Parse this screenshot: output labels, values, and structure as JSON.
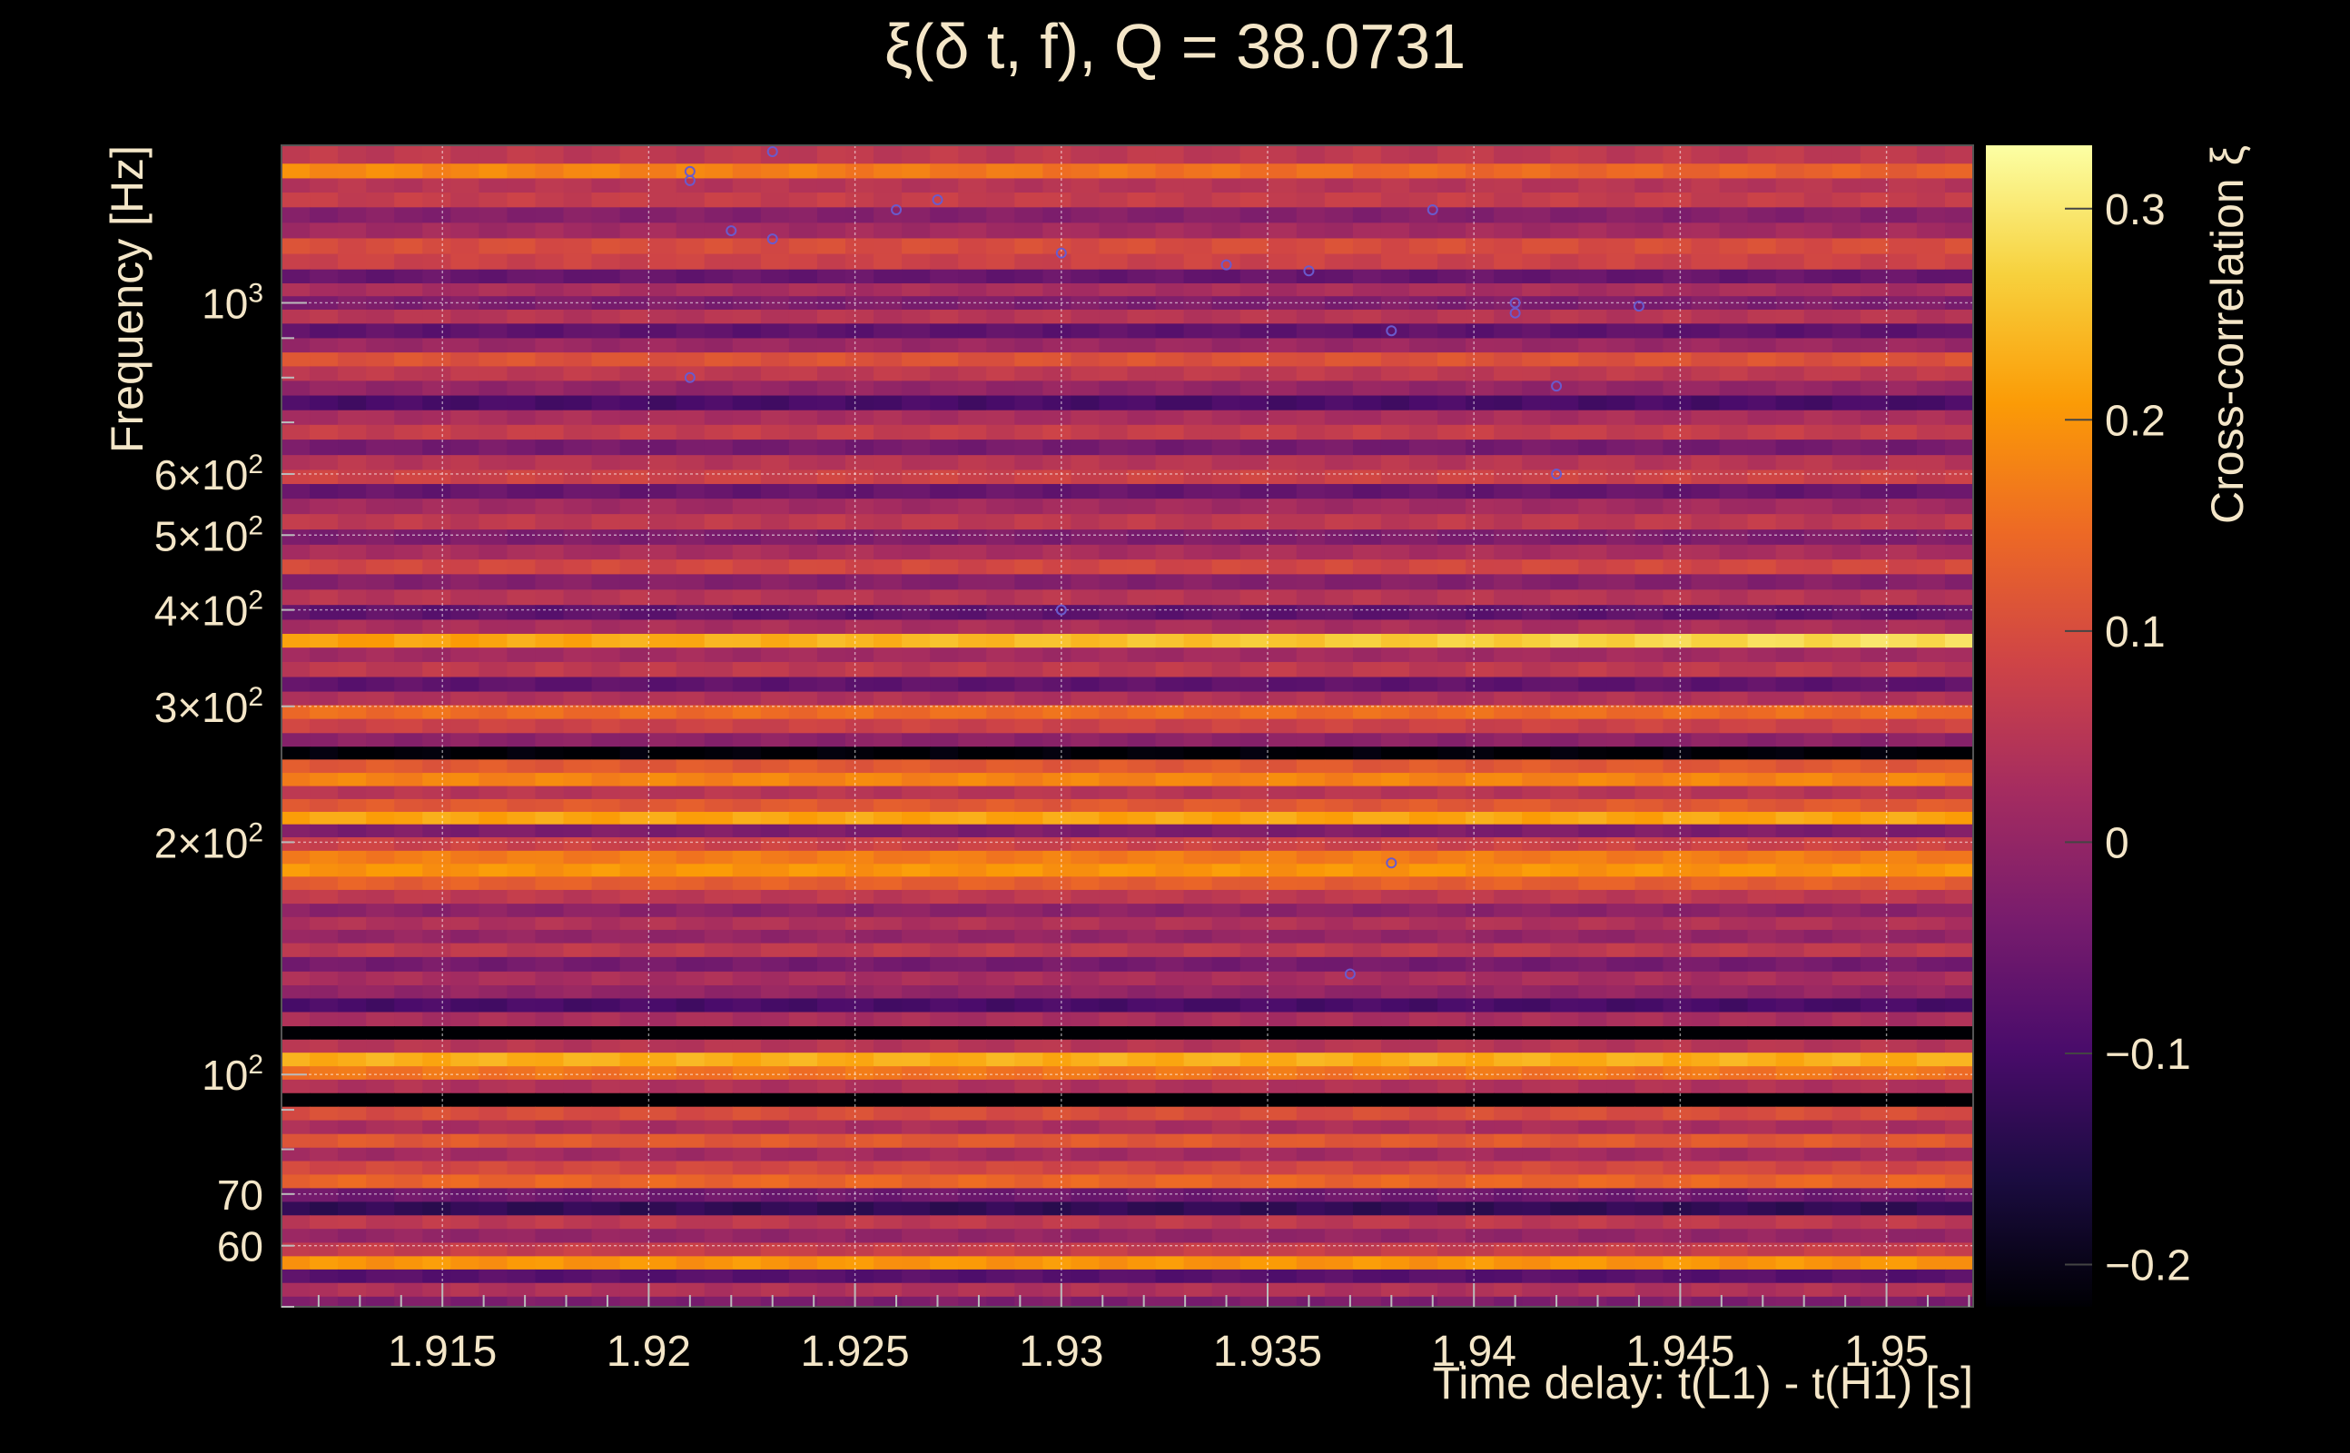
{
  "chart_data": {
    "type": "heatmap",
    "title": "ξ(δ t, f), Q = 38.0731",
    "xlabel": "Time delay: t(L1) - t(H1) [s]",
    "ylabel": "Frequency [Hz]",
    "xlim": [
      1.9111,
      1.9521
    ],
    "ylim": [
      50,
      1600
    ],
    "yscale": "log",
    "x_ticks": [
      {
        "value": 1.915,
        "label": "1.915"
      },
      {
        "value": 1.92,
        "label": "1.92"
      },
      {
        "value": 1.925,
        "label": "1.925"
      },
      {
        "value": 1.93,
        "label": "1.93"
      },
      {
        "value": 1.935,
        "label": "1.935"
      },
      {
        "value": 1.94,
        "label": "1.94"
      },
      {
        "value": 1.945,
        "label": "1.945"
      },
      {
        "value": 1.95,
        "label": "1.95"
      }
    ],
    "y_ticks": [
      {
        "value": 60,
        "base": "60",
        "sup": ""
      },
      {
        "value": 70,
        "base": "70",
        "sup": ""
      },
      {
        "value": 100,
        "base": "10",
        "sup": "2"
      },
      {
        "value": 200,
        "base": "2×10",
        "sup": "2"
      },
      {
        "value": 300,
        "base": "3×10",
        "sup": "2"
      },
      {
        "value": 400,
        "base": "4×10",
        "sup": "2"
      },
      {
        "value": 500,
        "base": "5×10",
        "sup": "2"
      },
      {
        "value": 600,
        "base": "6×10",
        "sup": "2"
      },
      {
        "value": 1000,
        "base": "10",
        "sup": "3"
      }
    ],
    "colorbar": {
      "label": "Cross-correlation ξ",
      "range": [
        -0.22,
        0.33
      ],
      "ticks": [
        {
          "value": 0.3,
          "label": "0.3"
        },
        {
          "value": 0.2,
          "label": "0.2"
        },
        {
          "value": 0.1,
          "label": "0.1"
        },
        {
          "value": 0,
          "label": "0"
        },
        {
          "value": -0.1,
          "label": "−0.1"
        },
        {
          "value": -0.2,
          "label": "−0.2"
        }
      ],
      "colormap": "inferno",
      "colors": [
        "#000004",
        "#1b0c41",
        "#4a0c6b",
        "#781c6d",
        "#a52c60",
        "#cf4446",
        "#ed6925",
        "#fb9b06",
        "#f7d13d",
        "#fcffa4"
      ]
    },
    "grid": true,
    "bands": [
      {
        "f": 1550,
        "v": 0.06
      },
      {
        "f": 1480,
        "v": 0.16,
        "slope": -0.06
      },
      {
        "f": 1420,
        "v": 0.05
      },
      {
        "f": 1360,
        "v": 0.07
      },
      {
        "f": 1300,
        "v": -0.02
      },
      {
        "f": 1240,
        "v": 0.02
      },
      {
        "f": 1185,
        "v": 0.1
      },
      {
        "f": 1130,
        "v": 0.08
      },
      {
        "f": 1080,
        "v": -0.06
      },
      {
        "f": 1040,
        "v": 0.03
      },
      {
        "f": 1000,
        "v": -0.03
      },
      {
        "f": 960,
        "v": 0.05
      },
      {
        "f": 920,
        "v": -0.07
      },
      {
        "f": 880,
        "v": 0.01
      },
      {
        "f": 845,
        "v": 0.11
      },
      {
        "f": 810,
        "v": 0.06
      },
      {
        "f": 775,
        "v": 0.0
      },
      {
        "f": 742,
        "v": -0.1
      },
      {
        "f": 710,
        "v": 0.03
      },
      {
        "f": 680,
        "v": 0.07
      },
      {
        "f": 650,
        "v": -0.04
      },
      {
        "f": 620,
        "v": 0.05
      },
      {
        "f": 595,
        "v": 0.08
      },
      {
        "f": 570,
        "v": -0.06
      },
      {
        "f": 545,
        "v": 0.02
      },
      {
        "f": 520,
        "v": 0.06
      },
      {
        "f": 497,
        "v": -0.03
      },
      {
        "f": 475,
        "v": 0.03
      },
      {
        "f": 455,
        "v": 0.09
      },
      {
        "f": 435,
        "v": -0.02
      },
      {
        "f": 415,
        "v": 0.05
      },
      {
        "f": 397,
        "v": -0.07
      },
      {
        "f": 380,
        "v": 0.03
      },
      {
        "f": 365,
        "v": 0.25,
        "slope": 0.08
      },
      {
        "f": 350,
        "v": 0.02
      },
      {
        "f": 335,
        "v": 0.06
      },
      {
        "f": 320,
        "v": -0.07
      },
      {
        "f": 307,
        "v": 0.04
      },
      {
        "f": 295,
        "v": 0.15
      },
      {
        "f": 283,
        "v": 0.08
      },
      {
        "f": 271,
        "v": -0.01
      },
      {
        "f": 261,
        "v": -0.22
      },
      {
        "f": 251,
        "v": 0.12
      },
      {
        "f": 241,
        "v": 0.18
      },
      {
        "f": 232,
        "v": 0.05
      },
      {
        "f": 223,
        "v": 0.12
      },
      {
        "f": 215,
        "v": 0.22
      },
      {
        "f": 207,
        "v": -0.03
      },
      {
        "f": 199,
        "v": 0.08
      },
      {
        "f": 191,
        "v": 0.17
      },
      {
        "f": 184,
        "v": 0.2
      },
      {
        "f": 177,
        "v": 0.13
      },
      {
        "f": 170,
        "v": 0.06
      },
      {
        "f": 163,
        "v": -0.01
      },
      {
        "f": 157,
        "v": 0.04
      },
      {
        "f": 151,
        "v": 0.0
      },
      {
        "f": 145,
        "v": 0.06
      },
      {
        "f": 139,
        "v": -0.04
      },
      {
        "f": 133,
        "v": 0.03
      },
      {
        "f": 128,
        "v": 0.0
      },
      {
        "f": 123,
        "v": -0.1
      },
      {
        "f": 118,
        "v": 0.03
      },
      {
        "f": 113,
        "v": -0.24
      },
      {
        "f": 109,
        "v": 0.05
      },
      {
        "f": 104.5,
        "v": 0.23
      },
      {
        "f": 100.5,
        "v": 0.16
      },
      {
        "f": 96.5,
        "v": 0.04
      },
      {
        "f": 92.7,
        "v": -0.25
      },
      {
        "f": 89,
        "v": 0.1
      },
      {
        "f": 85.5,
        "v": 0.03
      },
      {
        "f": 82,
        "v": 0.12
      },
      {
        "f": 78.8,
        "v": 0.02
      },
      {
        "f": 75.7,
        "v": 0.09
      },
      {
        "f": 72.7,
        "v": 0.14
      },
      {
        "f": 69.8,
        "v": -0.05
      },
      {
        "f": 67,
        "v": -0.13
      },
      {
        "f": 64.4,
        "v": 0.06
      },
      {
        "f": 61.8,
        "v": 0.0
      },
      {
        "f": 59.3,
        "v": 0.07
      },
      {
        "f": 57,
        "v": 0.2
      },
      {
        "f": 54.8,
        "v": -0.08
      },
      {
        "f": 52.6,
        "v": 0.04
      },
      {
        "f": 50.5,
        "v": -0.03
      }
    ],
    "markers": [
      {
        "x": 1.921,
        "f": 1480
      },
      {
        "x": 1.921,
        "f": 1440
      },
      {
        "x": 1.923,
        "f": 1570
      },
      {
        "x": 1.922,
        "f": 1240
      },
      {
        "x": 1.923,
        "f": 1210
      },
      {
        "x": 1.926,
        "f": 1320
      },
      {
        "x": 1.927,
        "f": 1360
      },
      {
        "x": 1.93,
        "f": 1160
      },
      {
        "x": 1.934,
        "f": 1120
      },
      {
        "x": 1.936,
        "f": 1100
      },
      {
        "x": 1.939,
        "f": 1320
      },
      {
        "x": 1.941,
        "f": 1000
      },
      {
        "x": 1.941,
        "f": 970
      },
      {
        "x": 1.944,
        "f": 990
      },
      {
        "x": 1.938,
        "f": 920
      },
      {
        "x": 1.921,
        "f": 800
      },
      {
        "x": 1.942,
        "f": 780
      },
      {
        "x": 1.942,
        "f": 600
      },
      {
        "x": 1.93,
        "f": 400
      },
      {
        "x": 1.938,
        "f": 188
      },
      {
        "x": 1.937,
        "f": 135
      }
    ]
  }
}
